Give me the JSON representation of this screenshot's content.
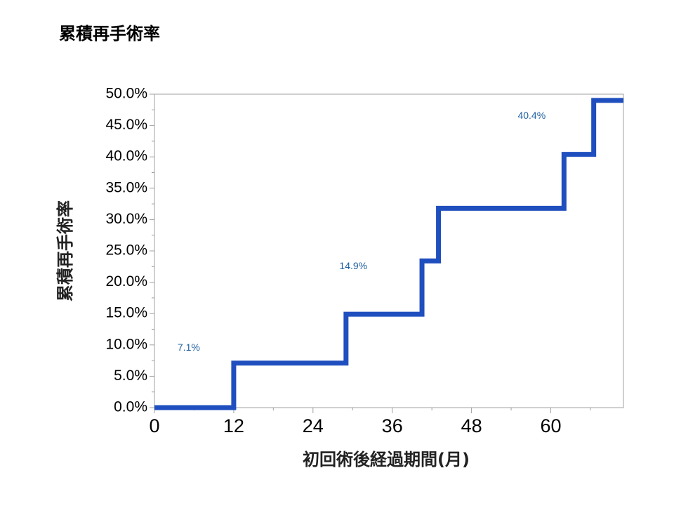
{
  "slide": {
    "title": "累積再手術率"
  },
  "chart_data": {
    "type": "line",
    "step": true,
    "title": "",
    "xlabel": "初回術後経過期間(月)",
    "ylabel": "累積再手術率",
    "xlim": [
      0,
      71
    ],
    "ylim": [
      0,
      50
    ],
    "x_ticks": [
      0,
      12,
      24,
      36,
      48,
      60
    ],
    "x_tick_labels": [
      "0",
      "12",
      "24",
      "36",
      "48",
      "60"
    ],
    "y_ticks": [
      0,
      5,
      10,
      15,
      20,
      25,
      30,
      35,
      40,
      45,
      50
    ],
    "y_tick_labels": [
      "0.0%",
      "5.0%",
      "10.0%",
      "15.0%",
      "20.0%",
      "25.0%",
      "30.0%",
      "35.0%",
      "40.0%",
      "45.0%",
      "50.0%"
    ],
    "grid": false,
    "series": [
      {
        "color": "#1f4fbf",
        "x": [
          0,
          12,
          29,
          40.5,
          43,
          62,
          66.5,
          71
        ],
        "y": [
          0,
          7.1,
          14.9,
          23.4,
          31.8,
          40.4,
          49,
          49
        ]
      }
    ],
    "annotations": [
      {
        "text": "7.1%",
        "x": 3.5,
        "y": 9.5
      },
      {
        "text": "14.9%",
        "x": 28,
        "y": 22.5
      },
      {
        "text": "40.4%",
        "x": 55,
        "y": 46.5
      }
    ],
    "annotation_color": "#1f5fa0"
  }
}
